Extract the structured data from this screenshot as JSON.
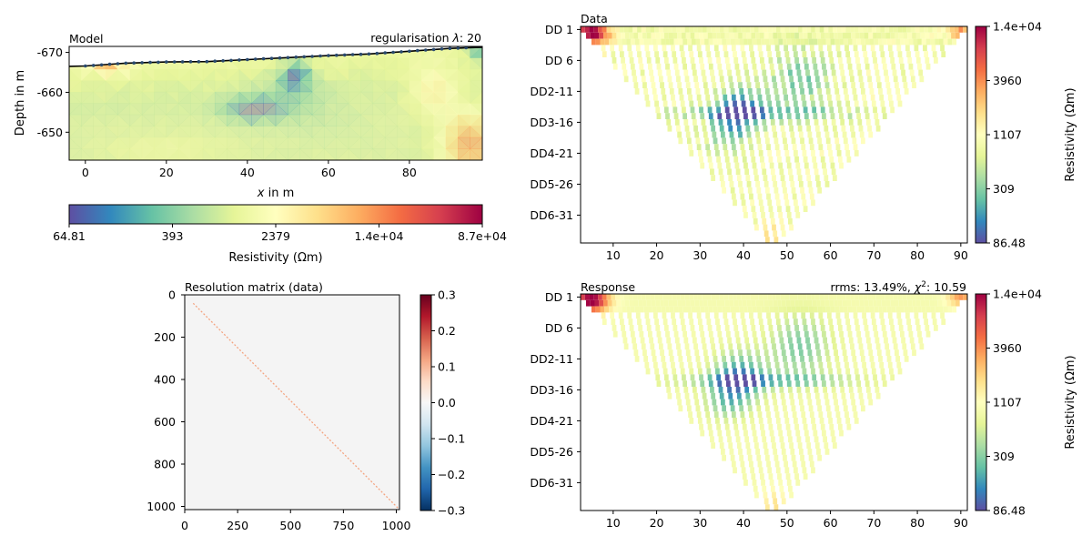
{
  "chart_data": [
    {
      "type": "heatmap",
      "id": "model",
      "title": "Model",
      "annotation": "regularisation λ: 20",
      "annotation_prefix": "regularisation ",
      "annotation_lambda": "λ",
      "annotation_suffix": ": 20",
      "xlabel_italic": "x",
      "xlabel_rest": " in m",
      "ylabel": "Depth in m",
      "xlim": [
        -4,
        98
      ],
      "ylim": [
        -643,
        -671.5
      ],
      "xticks": [
        0,
        20,
        40,
        60,
        80
      ],
      "xtick_labels": [
        "0",
        "20",
        "40",
        "60",
        "80"
      ],
      "yticks": [
        -670,
        -660,
        -650
      ],
      "ytick_labels": [
        "-670",
        "-660",
        "-650"
      ],
      "colorscale": "Spectral_r (log)",
      "colorbar_orientation": "horizontal",
      "colorbar_label": "Resistivity (Ωm)",
      "colorbar_ticks": [
        "64.81",
        "393",
        "2379",
        "1.4e+04",
        "8.7e+04"
      ],
      "colorbar_range": [
        64.81,
        87000
      ],
      "surface_x": [
        -4,
        0,
        10,
        20,
        30,
        40,
        50,
        60,
        70,
        80,
        90,
        98
      ],
      "surface_depth": [
        -666.5,
        -666.6,
        -667.3,
        -667.6,
        -667.7,
        -668.2,
        -668.7,
        -669.2,
        -669.6,
        -670.3,
        -671,
        -671.3
      ],
      "features": [
        {
          "name": "high resistivity near surface",
          "x": [
            1,
            11
          ],
          "depth": [
            -667,
            -665
          ],
          "value": 8000
        },
        {
          "name": "low resistivity body",
          "x": [
            35,
            56
          ],
          "depth": [
            -668,
            -653
          ],
          "value": 150
        },
        {
          "name": "high resistivity lower right",
          "x": [
            85,
            98
          ],
          "depth": [
            -666,
            -644
          ],
          "value": 40000
        }
      ]
    },
    {
      "type": "heatmap",
      "id": "data",
      "title": "Data",
      "xlim": [
        2.5,
        91.5
      ],
      "xticks": [
        10,
        20,
        30,
        40,
        50,
        60,
        70,
        80,
        90
      ],
      "xtick_labels": [
        "10",
        "20",
        "30",
        "40",
        "50",
        "60",
        "70",
        "80",
        "90"
      ],
      "ytick_labels": [
        "DD 1",
        "DD 6",
        "DD2-11",
        "DD3-16",
        "DD4-21",
        "DD5-26",
        "DD6-31"
      ],
      "colorscale": "Spectral_r (log)",
      "colorbar_label": "Resistivity (Ωm)",
      "colorbar_ticks": [
        "1.4e+04",
        "3960",
        "1107",
        "309",
        "86.48"
      ],
      "colorbar_range": [
        86.48,
        14000
      ],
      "pseudosection_rows": 35
    },
    {
      "type": "heatmap",
      "id": "resolution",
      "title": "Resolution matrix (data)",
      "xlim": [
        0,
        1015
      ],
      "ylim": [
        1015,
        0
      ],
      "xticks": [
        0,
        250,
        500,
        750,
        1000
      ],
      "xtick_labels": [
        "0",
        "250",
        "500",
        "750",
        "1000"
      ],
      "yticks": [
        0,
        200,
        400,
        600,
        800,
        1000
      ],
      "ytick_labels": [
        "0",
        "200",
        "400",
        "600",
        "800",
        "1000"
      ],
      "colorscale": "RdBu_r",
      "colorbar_ticks": [
        "0.3",
        "0.2",
        "0.1",
        "0.0",
        "−0.1",
        "−0.2",
        "−0.3"
      ],
      "colorbar_range": [
        -0.3,
        0.3
      ],
      "diagonal_range": [
        40,
        1015
      ]
    },
    {
      "type": "heatmap",
      "id": "response",
      "title": "Response",
      "annotation_prefix": "rrms: 13.49%, ",
      "annotation_chi": "χ",
      "annotation_sup": "2",
      "annotation_suffix": ": 10.59",
      "rrms": "13.49%",
      "chi2": 10.59,
      "xlim": [
        2.5,
        91.5
      ],
      "xticks": [
        10,
        20,
        30,
        40,
        50,
        60,
        70,
        80,
        90
      ],
      "xtick_labels": [
        "10",
        "20",
        "30",
        "40",
        "50",
        "60",
        "70",
        "80",
        "90"
      ],
      "ytick_labels": [
        "DD 1",
        "DD 6",
        "DD2-11",
        "DD3-16",
        "DD4-21",
        "DD5-26",
        "DD6-31"
      ],
      "colorscale": "Spectral_r (log)",
      "colorbar_label": "Resistivity (Ωm)",
      "colorbar_ticks": [
        "1.4e+04",
        "3960",
        "1107",
        "309",
        "86.48"
      ],
      "colorbar_range": [
        86.48,
        14000
      ],
      "pseudosection_rows": 35
    }
  ]
}
